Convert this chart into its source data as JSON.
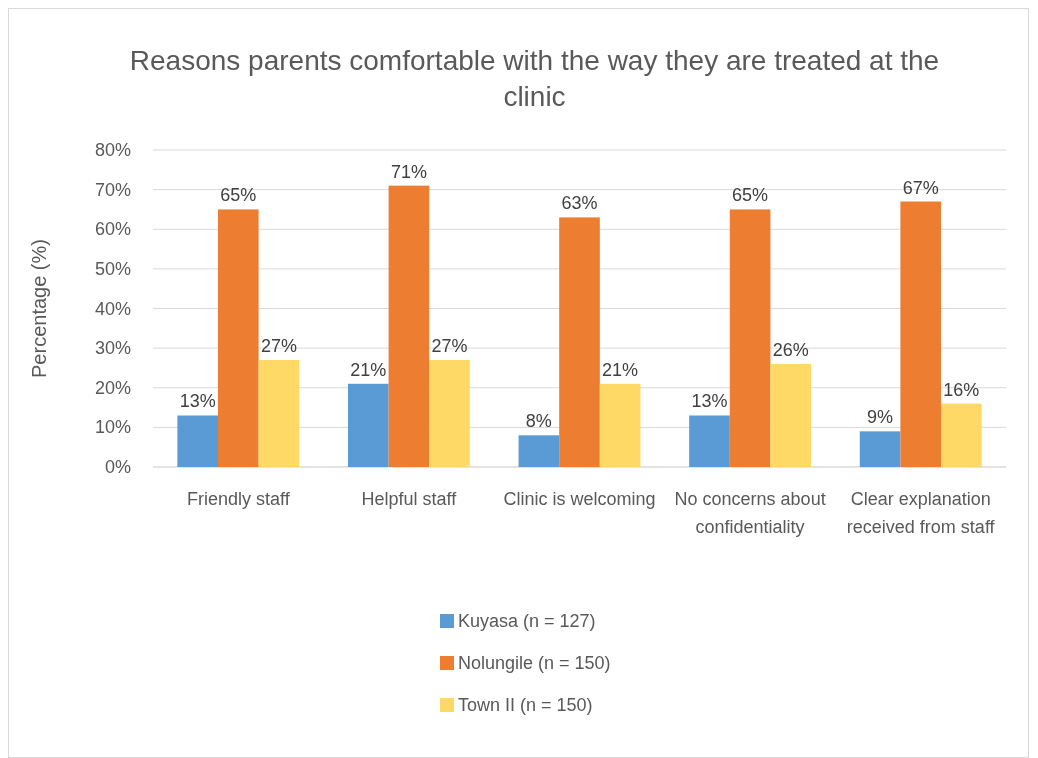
{
  "chart_data": {
    "type": "bar",
    "title": "Reasons parents comfortable with the way they are treated at the clinic",
    "ylabel": "Percentage (%)",
    "categories": [
      "Friendly staff",
      "Helpful staff",
      "Clinic is welcoming",
      "No concerns about confidentiality",
      "Clear explanation received from staff"
    ],
    "series": [
      {
        "name": "Kuyasa (n = 127)",
        "color": "#5b9bd5",
        "values": [
          13,
          21,
          8,
          13,
          9
        ],
        "value_labels": [
          "13%",
          "21%",
          "8%",
          "13%",
          "9%"
        ]
      },
      {
        "name": "Nolungile (n = 150)",
        "color": "#ed7d31",
        "values": [
          65,
          71,
          63,
          65,
          67
        ],
        "value_labels": [
          "65%",
          "71%",
          "63%",
          "65%",
          "67%"
        ]
      },
      {
        "name": "Town II (n = 150)",
        "color": "#ffd966",
        "values": [
          27,
          27,
          21,
          26,
          16
        ],
        "value_labels": [
          "27%",
          "27%",
          "21%",
          "26%",
          "16%"
        ]
      }
    ],
    "ylim": [
      0,
      80
    ],
    "yticks": [
      {
        "value": 0,
        "label": "0%"
      },
      {
        "value": 10,
        "label": "10%"
      },
      {
        "value": 20,
        "label": "20%"
      },
      {
        "value": 30,
        "label": "30%"
      },
      {
        "value": 40,
        "label": "40%"
      },
      {
        "value": 50,
        "label": "50%"
      },
      {
        "value": 60,
        "label": "60%"
      },
      {
        "value": 70,
        "label": "70%"
      },
      {
        "value": 80,
        "label": "80%"
      }
    ],
    "grid": "y",
    "legend": "bottom"
  }
}
